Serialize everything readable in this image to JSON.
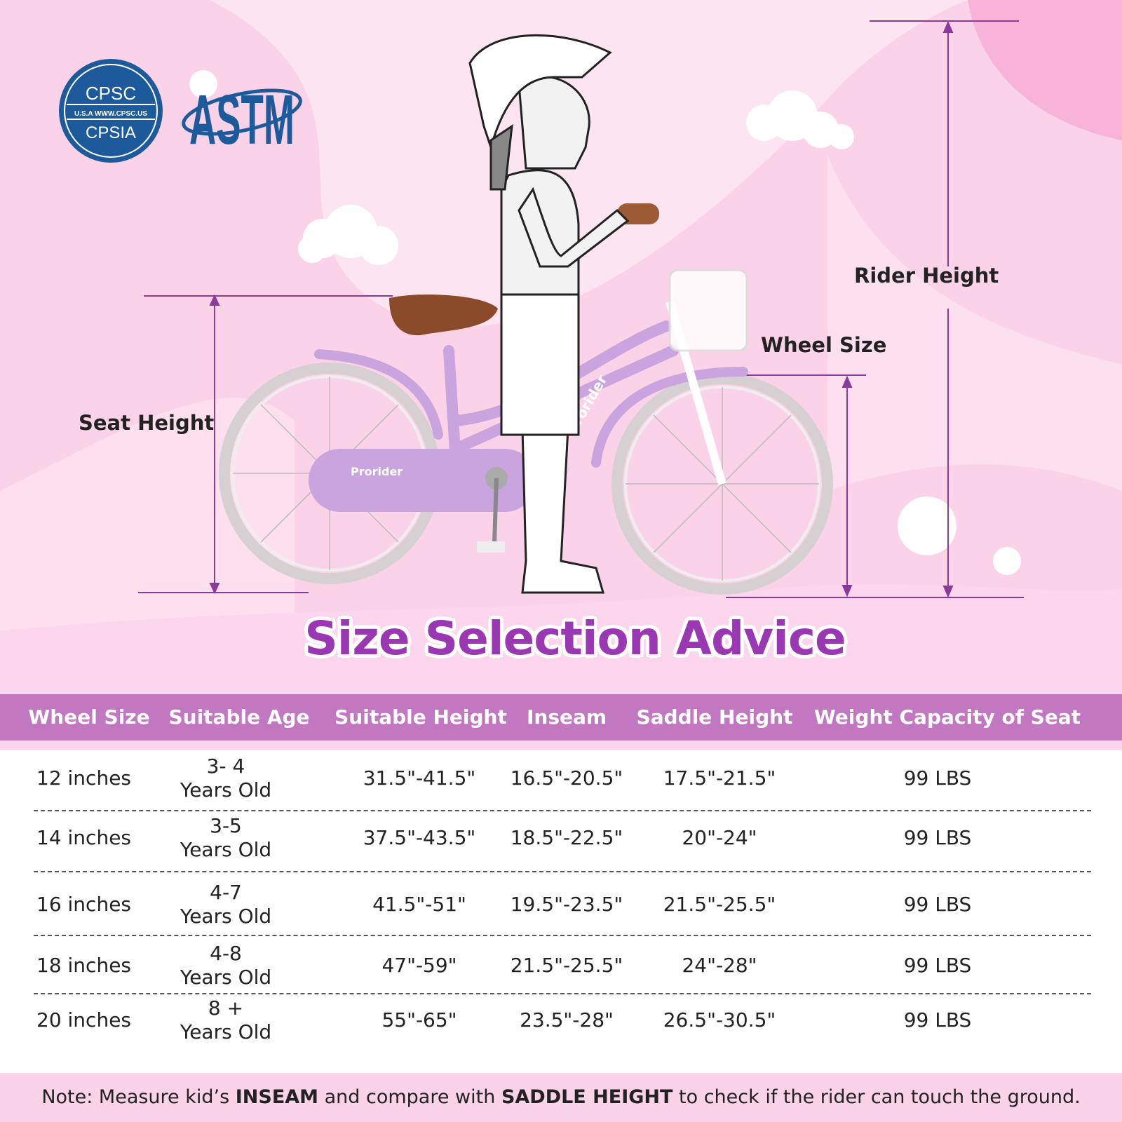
{
  "logos": {
    "cpsc": {
      "top": "CPSC",
      "middle": "U.S.A  WWW.CPSC.US",
      "bottom": "CPSIA",
      "color": "#1d5a9c"
    },
    "astm": {
      "text": "ASTM",
      "color": "#1d5a9c"
    }
  },
  "illustration": {
    "brand": "Prorider",
    "labels": {
      "rider_height": "Rider Height",
      "wheel_size": "Wheel Size",
      "seat_height": "Seat Height"
    }
  },
  "title": "Size Selection Advice",
  "table": {
    "headers": [
      "Wheel Size",
      "Suitable Age",
      "Suitable Height",
      "Inseam",
      "Saddle Height",
      "Weight Capacity of Seat"
    ],
    "rows": [
      {
        "wheel": "12 inches",
        "age_top": "3- 4",
        "age_bottom": "Years Old",
        "height": "31.5\"-41.5\"",
        "inseam": "16.5\"-20.5\"",
        "saddle": "17.5\"-21.5\"",
        "weight": "99 LBS"
      },
      {
        "wheel": "14 inches",
        "age_top": "3-5",
        "age_bottom": "Years Old",
        "height": "37.5\"-43.5\"",
        "inseam": "18.5\"-22.5\"",
        "saddle": "20\"-24\"",
        "weight": "99 LBS"
      },
      {
        "wheel": "16 inches",
        "age_top": "4-7",
        "age_bottom": "Years Old",
        "height": "41.5\"-51\"",
        "inseam": "19.5\"-23.5\"",
        "saddle": "21.5\"-25.5\"",
        "weight": "99 LBS"
      },
      {
        "wheel": "18 inches",
        "age_top": "4-8",
        "age_bottom": "Years Old",
        "height": "47\"-59\"",
        "inseam": "21.5\"-25.5\"",
        "saddle": "24\"-28\"",
        "weight": "99 LBS"
      },
      {
        "wheel": "20 inches",
        "age_top": "8 +",
        "age_bottom": "Years Old",
        "height": "55\"-65\"",
        "inseam": "23.5\"-28\"",
        "saddle": "26.5\"-30.5\"",
        "weight": "99 LBS"
      }
    ]
  },
  "note": {
    "prefix": "Note: Measure kid’s ",
    "bold1": "INSEAM",
    "middle": " and compare with ",
    "bold2": "SADDLE HEIGHT",
    "suffix": " to check if the rider can touch the ground."
  },
  "colors": {
    "header": "#c277c1",
    "title": "#9a37b3",
    "frame": "#c9a4de",
    "dimension_line": "#8a3a9a"
  }
}
